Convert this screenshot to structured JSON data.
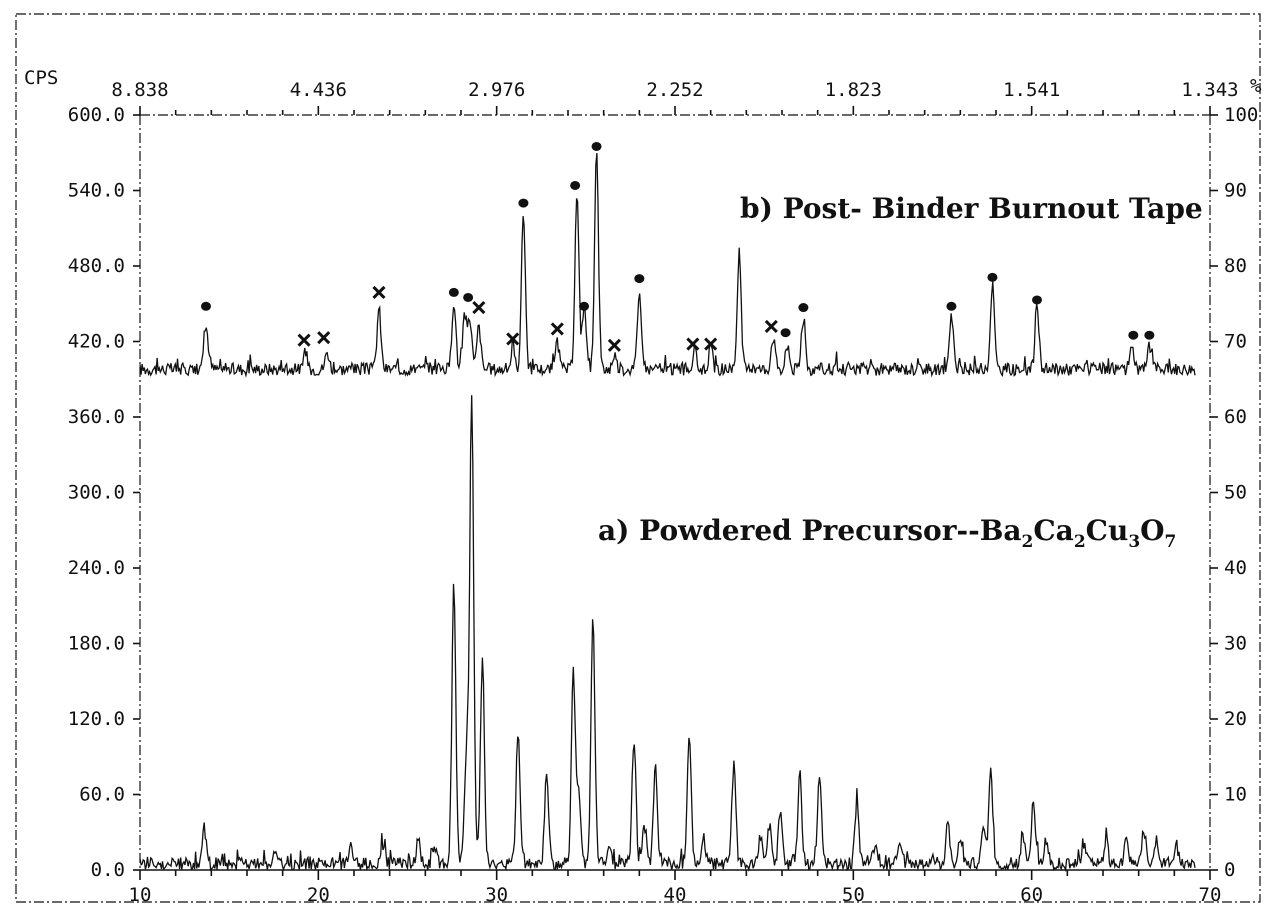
{
  "chart_data": {
    "type": "line",
    "x_unit_top": "",
    "ylabel_left": "CPS",
    "ylabel_right": "%",
    "xlim": [
      10,
      70
    ],
    "ylim_left": [
      0,
      600
    ],
    "ylim_right": [
      0,
      100
    ],
    "x_ticks": [
      10,
      20,
      30,
      40,
      50,
      60,
      70
    ],
    "x_tick_labels": [
      "10",
      "20",
      "30",
      "40",
      "50",
      "60",
      "70"
    ],
    "top_ticks": [
      {
        "x": 10,
        "label": "8.838"
      },
      {
        "x": 20,
        "label": "4.436"
      },
      {
        "x": 30,
        "label": "2.976"
      },
      {
        "x": 40,
        "label": "2.252"
      },
      {
        "x": 50,
        "label": "1.823"
      },
      {
        "x": 60,
        "label": "1.541"
      },
      {
        "x": 70,
        "label": "1.343"
      }
    ],
    "left_ticks": [
      {
        "v": 0,
        "label": "0.0"
      },
      {
        "v": 60,
        "label": "60.0"
      },
      {
        "v": 120,
        "label": "120.0"
      },
      {
        "v": 180,
        "label": "180.0"
      },
      {
        "v": 240,
        "label": "240.0"
      },
      {
        "v": 300,
        "label": "300.0"
      },
      {
        "v": 360,
        "label": "360.0"
      },
      {
        "v": 420,
        "label": "420.0"
      },
      {
        "v": 480,
        "label": "480.0"
      },
      {
        "v": 540,
        "label": "540.0"
      },
      {
        "v": 600,
        "label": "600.0"
      }
    ],
    "right_ticks": [
      {
        "v": 0,
        "label": "0"
      },
      {
        "v": 10,
        "label": "10"
      },
      {
        "v": 20,
        "label": "20"
      },
      {
        "v": 30,
        "label": "30"
      },
      {
        "v": 40,
        "label": "40"
      },
      {
        "v": 50,
        "label": "50"
      },
      {
        "v": 60,
        "label": "60"
      },
      {
        "v": 70,
        "label": "70"
      },
      {
        "v": 80,
        "label": "80"
      },
      {
        "v": 90,
        "label": "90"
      },
      {
        "v": 100,
        "label": "100"
      }
    ],
    "series": [
      {
        "name": "b) Post- Binder Burnout Tape",
        "baseline": 398,
        "peaks": [
          {
            "x": 13.7,
            "h": 36
          },
          {
            "x": 19.3,
            "h": 12
          },
          {
            "x": 20.5,
            "h": 14
          },
          {
            "x": 23.4,
            "h": 48
          },
          {
            "x": 27.6,
            "h": 55
          },
          {
            "x": 28.2,
            "h": 44
          },
          {
            "x": 28.5,
            "h": 40
          },
          {
            "x": 29.0,
            "h": 34
          },
          {
            "x": 30.9,
            "h": 14
          },
          {
            "x": 31.5,
            "h": 125
          },
          {
            "x": 33.4,
            "h": 20
          },
          {
            "x": 34.5,
            "h": 140
          },
          {
            "x": 34.9,
            "h": 50
          },
          {
            "x": 35.6,
            "h": 172
          },
          {
            "x": 36.6,
            "h": 12
          },
          {
            "x": 38.0,
            "h": 62
          },
          {
            "x": 41.1,
            "h": 14
          },
          {
            "x": 42.0,
            "h": 16
          },
          {
            "x": 43.6,
            "h": 92
          },
          {
            "x": 45.5,
            "h": 26
          },
          {
            "x": 46.3,
            "h": 18
          },
          {
            "x": 47.2,
            "h": 40
          },
          {
            "x": 55.5,
            "h": 42
          },
          {
            "x": 57.8,
            "h": 68
          },
          {
            "x": 60.3,
            "h": 48
          },
          {
            "x": 65.6,
            "h": 16
          },
          {
            "x": 66.6,
            "h": 18
          }
        ]
      },
      {
        "name": "a) Powdered Precursor--Ba2Ca2Cu3O7",
        "baseline": 5,
        "peaks": [
          {
            "x": 13.6,
            "h": 28
          },
          {
            "x": 17.6,
            "h": 8
          },
          {
            "x": 21.8,
            "h": 14
          },
          {
            "x": 23.6,
            "h": 14
          },
          {
            "x": 25.6,
            "h": 18
          },
          {
            "x": 26.5,
            "h": 14
          },
          {
            "x": 27.6,
            "h": 222
          },
          {
            "x": 28.3,
            "h": 85
          },
          {
            "x": 28.6,
            "h": 372
          },
          {
            "x": 29.2,
            "h": 160
          },
          {
            "x": 31.2,
            "h": 104
          },
          {
            "x": 32.8,
            "h": 70
          },
          {
            "x": 34.3,
            "h": 152
          },
          {
            "x": 34.6,
            "h": 58
          },
          {
            "x": 35.4,
            "h": 196
          },
          {
            "x": 36.3,
            "h": 16
          },
          {
            "x": 37.7,
            "h": 100
          },
          {
            "x": 38.3,
            "h": 30
          },
          {
            "x": 38.9,
            "h": 80
          },
          {
            "x": 40.8,
            "h": 98
          },
          {
            "x": 41.6,
            "h": 20
          },
          {
            "x": 43.3,
            "h": 80
          },
          {
            "x": 44.8,
            "h": 22
          },
          {
            "x": 45.3,
            "h": 30
          },
          {
            "x": 45.9,
            "h": 40
          },
          {
            "x": 47.0,
            "h": 72
          },
          {
            "x": 48.1,
            "h": 68
          },
          {
            "x": 50.2,
            "h": 48
          },
          {
            "x": 51.2,
            "h": 14
          },
          {
            "x": 52.6,
            "h": 16
          },
          {
            "x": 55.3,
            "h": 34
          },
          {
            "x": 56.0,
            "h": 22
          },
          {
            "x": 57.3,
            "h": 28
          },
          {
            "x": 57.7,
            "h": 74
          },
          {
            "x": 59.5,
            "h": 22
          },
          {
            "x": 60.1,
            "h": 48
          },
          {
            "x": 60.8,
            "h": 20
          },
          {
            "x": 63.0,
            "h": 14
          },
          {
            "x": 64.2,
            "h": 16
          },
          {
            "x": 65.3,
            "h": 24
          },
          {
            "x": 66.3,
            "h": 26
          },
          {
            "x": 67.0,
            "h": 20
          },
          {
            "x": 68.1,
            "h": 14
          }
        ]
      }
    ],
    "markers": [
      {
        "type": "dot",
        "x": 13.7,
        "y": 448
      },
      {
        "type": "cross",
        "x": 19.2,
        "y": 421
      },
      {
        "type": "cross",
        "x": 20.3,
        "y": 423
      },
      {
        "type": "cross",
        "x": 23.4,
        "y": 459
      },
      {
        "type": "dot",
        "x": 27.6,
        "y": 459
      },
      {
        "type": "dot",
        "x": 28.4,
        "y": 455
      },
      {
        "type": "cross",
        "x": 29.0,
        "y": 447
      },
      {
        "type": "cross",
        "x": 30.9,
        "y": 422
      },
      {
        "type": "dot",
        "x": 31.5,
        "y": 530
      },
      {
        "type": "cross",
        "x": 33.4,
        "y": 430
      },
      {
        "type": "dot",
        "x": 34.4,
        "y": 544
      },
      {
        "type": "dot",
        "x": 34.9,
        "y": 448
      },
      {
        "type": "dot",
        "x": 35.6,
        "y": 575
      },
      {
        "type": "cross",
        "x": 36.6,
        "y": 417
      },
      {
        "type": "dot",
        "x": 38.0,
        "y": 470
      },
      {
        "type": "cross",
        "x": 41.0,
        "y": 418
      },
      {
        "type": "cross",
        "x": 42.0,
        "y": 418
      },
      {
        "type": "cross",
        "x": 45.4,
        "y": 432
      },
      {
        "type": "dot",
        "x": 46.2,
        "y": 427
      },
      {
        "type": "dot",
        "x": 47.2,
        "y": 447
      },
      {
        "type": "dot",
        "x": 55.5,
        "y": 448
      },
      {
        "type": "dot",
        "x": 57.8,
        "y": 471
      },
      {
        "type": "dot",
        "x": 60.3,
        "y": 453
      },
      {
        "type": "dot",
        "x": 65.7,
        "y": 425
      },
      {
        "type": "dot",
        "x": 66.6,
        "y": 425
      }
    ]
  },
  "labels": {
    "cps": "CPS",
    "percent": "%",
    "title_b": "b) Post- Binder Burnout Tape",
    "title_a_prefix": "a) Powdered Precursor--Ba",
    "sub1": "2",
    "ca": "Ca",
    "sub2": "2",
    "cu": "Cu",
    "sub3": "3",
    "o": "O",
    "sub4": "7"
  }
}
